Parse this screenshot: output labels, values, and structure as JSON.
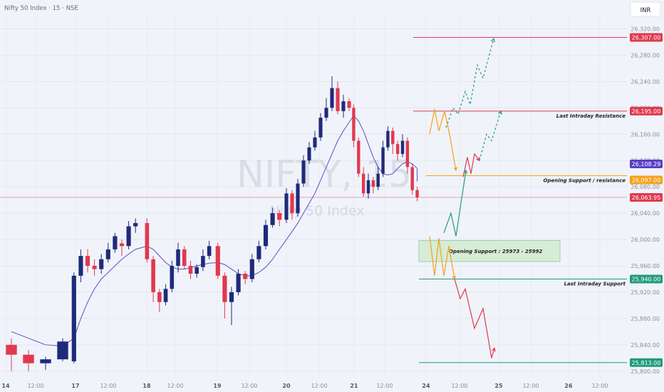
{
  "header": {
    "title": "Nifty 50 Index · 15 · NSE",
    "currency": "INR"
  },
  "watermark": {
    "symbol": "NIFTY, 15",
    "name": "Nifty 50 Index"
  },
  "colors": {
    "background": "#f0f3fa",
    "up_candle": "#1f2a7a",
    "down_candle": "#e0394e",
    "ma_line": "#5b4fc2",
    "resistance": "#e0394e",
    "support": "#1e9c7a",
    "opening_level": "#f4a11a",
    "current_price": "#e0394e",
    "vwap_marker": "#5b3fc4",
    "zone_fill": "#d6ecd6"
  },
  "chart_data": {
    "type": "candlestick",
    "ylim": [
      25790,
      26340
    ],
    "y_ticks": [
      {
        "value": 25800,
        "label": "25,800.00"
      },
      {
        "value": 25840,
        "label": "25,840.00"
      },
      {
        "value": 25880,
        "label": "25,880.00"
      },
      {
        "value": 25920,
        "label": "25,920.00"
      },
      {
        "value": 25960,
        "label": "25,960.00"
      },
      {
        "value": 26000,
        "label": "26,000.00"
      },
      {
        "value": 26040,
        "label": "26,040.00"
      },
      {
        "value": 26080,
        "label": "26,080.00"
      },
      {
        "value": 26120,
        "label": "26,120.00"
      },
      {
        "value": 26160,
        "label": "26,160.00"
      },
      {
        "value": 26200,
        "label": "26,200.00"
      },
      {
        "value": 26240,
        "label": "26,240.00"
      },
      {
        "value": 26280,
        "label": "26,280.00"
      },
      {
        "value": 26320,
        "label": "26,320.00"
      }
    ],
    "x_ticks": [
      "14",
      "12:00",
      "17",
      "12:00",
      "18",
      "12:00",
      "19",
      "12:00",
      "20",
      "12:00",
      "21",
      "12:00",
      "24",
      "12:00",
      "25",
      "12:00",
      "26",
      "12:00"
    ],
    "price_badges": [
      {
        "label": "26,307.00",
        "value": 26307,
        "color": "#e0394e"
      },
      {
        "label": "26,195.00",
        "value": 26195,
        "color": "#e0394e"
      },
      {
        "label": "26,108.29",
        "value": 26108.29,
        "color": "#5b3fc4"
      },
      {
        "label": "26,097.00",
        "value": 26097,
        "color": "#f4a11a"
      },
      {
        "label": "26,063.95",
        "value": 26063.95,
        "color": "#e0394e"
      },
      {
        "label": "25,940.00",
        "value": 25940,
        "color": "#1e9c7a"
      },
      {
        "label": "25,813.00",
        "value": 25813,
        "color": "#1e9c7a"
      }
    ],
    "levels": [
      {
        "value": 26307,
        "color": "#e0394e",
        "text": ""
      },
      {
        "value": 26195,
        "color": "#e0394e",
        "text": "Last Intraday Resistance"
      },
      {
        "value": 26097,
        "color": "#f4a11a",
        "text": "Opening Support / resistance"
      },
      {
        "value": 25940,
        "color": "#1e9c7a",
        "text": "Last Intraday Support"
      },
      {
        "value": 25813,
        "color": "#1e9c7a",
        "text": ""
      }
    ],
    "current_price": 26063.95,
    "zone": {
      "low": 25973,
      "high": 25992,
      "text": "Opening Support :  25973 - 25992"
    },
    "candles": {
      "14": [
        [
          25840,
          25825,
          25850,
          25800
        ],
        [
          25825,
          25812,
          25832,
          25800
        ],
        [
          25812,
          25818,
          25822,
          25802
        ],
        [
          25818,
          25845,
          25850,
          25815
        ]
      ],
      "17": [
        [
          25815,
          25945,
          25950,
          25812
        ],
        [
          25945,
          25975,
          25985,
          25935
        ],
        [
          25975,
          25960,
          25985,
          25950
        ],
        [
          25960,
          25955,
          25970,
          25945
        ],
        [
          25955,
          25970,
          25978,
          25948
        ],
        [
          25970,
          25985,
          25995,
          25965
        ],
        [
          25985,
          26005,
          26010,
          25980
        ],
        [
          25994,
          25990,
          26000,
          25975
        ],
        [
          25990,
          26020,
          26028,
          25985
        ],
        [
          26020,
          26025,
          26032,
          26010
        ]
      ],
      "18": [
        [
          26025,
          25970,
          26032,
          25965
        ],
        [
          25970,
          25920,
          25975,
          25905
        ],
        [
          25920,
          25905,
          25925,
          25890
        ],
        [
          25905,
          25925,
          25932,
          25900
        ],
        [
          25925,
          25960,
          25968,
          25920
        ],
        [
          25960,
          25985,
          25995,
          25950
        ],
        [
          25985,
          25960,
          25990,
          25955
        ],
        [
          25960,
          25948,
          25968,
          25940
        ],
        [
          25948,
          25958,
          25962,
          25942
        ],
        [
          25958,
          25975,
          25985,
          25952
        ],
        [
          25975,
          25990,
          25998,
          25970
        ]
      ],
      "19": [
        [
          25990,
          25945,
          25995,
          25940
        ],
        [
          25945,
          25905,
          25950,
          25880
        ],
        [
          25905,
          25920,
          25928,
          25870
        ],
        [
          25920,
          25948,
          25955,
          25915
        ],
        [
          25948,
          25940,
          25952,
          25932
        ],
        [
          25940,
          25970,
          25978,
          25935
        ],
        [
          25970,
          25990,
          25998,
          25965
        ],
        [
          25990,
          26022,
          26030,
          25985
        ],
        [
          26022,
          26040,
          26048,
          26018
        ],
        [
          26040,
          26030,
          26045,
          26020
        ]
      ],
      "20": [
        [
          26030,
          26070,
          26078,
          26025
        ],
        [
          26070,
          26040,
          26075,
          26030
        ],
        [
          26040,
          26085,
          26092,
          26035
        ],
        [
          26085,
          26120,
          26128,
          26080
        ],
        [
          26120,
          26140,
          26148,
          26115
        ],
        [
          26140,
          26155,
          26165,
          26135
        ],
        [
          26155,
          26185,
          26192,
          26150
        ],
        [
          26185,
          26200,
          26215,
          26180
        ],
        [
          26200,
          26230,
          26248,
          26195
        ],
        [
          26230,
          26195,
          26240,
          26190
        ],
        [
          26195,
          26210,
          26220,
          26185
        ],
        [
          26210,
          26200,
          26215,
          26195
        ]
      ],
      "21": [
        [
          26200,
          26150,
          26205,
          26140
        ],
        [
          26150,
          26100,
          26155,
          26095
        ],
        [
          26100,
          26070,
          26110,
          26065
        ],
        [
          26070,
          26090,
          26100,
          26062
        ],
        [
          26090,
          26080,
          26095,
          26070
        ],
        [
          26080,
          26100,
          26110,
          26075
        ],
        [
          26100,
          26140,
          26150,
          26095
        ],
        [
          26140,
          26165,
          26172,
          26135
        ],
        [
          26165,
          26145,
          26170,
          26130
        ],
        [
          26145,
          26130,
          26150,
          26120
        ],
        [
          26130,
          26150,
          26160,
          26125
        ],
        [
          26150,
          26110,
          26155,
          26100
        ],
        [
          26110,
          26075,
          26115,
          26068
        ],
        [
          26075,
          26064,
          26080,
          26058
        ]
      ]
    },
    "scenarios": [
      {
        "color": "#1e9c7a",
        "dashed": true,
        "points": [
          [
            "24",
            0.28,
            26170
          ],
          [
            "24",
            0.38,
            26200
          ],
          [
            "24",
            0.45,
            26190
          ],
          [
            "24",
            0.55,
            26225
          ],
          [
            "24",
            0.62,
            26205
          ],
          [
            "24",
            0.72,
            26265
          ],
          [
            "24",
            0.8,
            26245
          ],
          [
            "24",
            0.95,
            26305
          ]
        ]
      },
      {
        "color": "#f4a11a",
        "dashed": false,
        "points": [
          [
            "24",
            0.05,
            26160
          ],
          [
            "24",
            0.12,
            26198
          ],
          [
            "24",
            0.18,
            26165
          ],
          [
            "24",
            0.26,
            26195
          ],
          [
            "24",
            0.33,
            26160
          ],
          [
            "24",
            0.42,
            26105
          ]
        ]
      },
      {
        "color": "#e0394e",
        "dashed": false,
        "points": [
          [
            "24",
            0.52,
            26095
          ],
          [
            "24",
            0.58,
            26125
          ],
          [
            "24",
            0.63,
            26100
          ],
          [
            "24",
            0.68,
            26130
          ],
          [
            "24",
            0.75,
            26120
          ]
        ]
      },
      {
        "color": "#1e9c7a",
        "dashed": true,
        "points": [
          [
            "24",
            0.75,
            26120
          ],
          [
            "24",
            0.85,
            26160
          ],
          [
            "24",
            0.92,
            26150
          ],
          [
            "24",
            1.05,
            26195
          ]
        ]
      },
      {
        "color": "#1e9c7a",
        "dashed": false,
        "points": [
          [
            "24",
            0.25,
            26010
          ],
          [
            "24",
            0.35,
            26040
          ],
          [
            "24",
            0.42,
            26005
          ],
          [
            "24",
            0.56,
            26105
          ]
        ]
      },
      {
        "color": "#f4a11a",
        "dashed": false,
        "points": [
          [
            "24",
            0.05,
            26005
          ],
          [
            "24",
            0.12,
            25945
          ],
          [
            "24",
            0.18,
            26002
          ],
          [
            "24",
            0.25,
            25945
          ],
          [
            "24",
            0.32,
            25990
          ],
          [
            "24",
            0.4,
            25940
          ]
        ]
      },
      {
        "color": "#e0394e",
        "dashed": false,
        "points": [
          [
            "24",
            0.4,
            25940
          ],
          [
            "24",
            0.48,
            25910
          ],
          [
            "24",
            0.55,
            25925
          ],
          [
            "24",
            0.68,
            25865
          ],
          [
            "24",
            0.8,
            25895
          ],
          [
            "24",
            0.92,
            25820
          ],
          [
            "24",
            0.96,
            25835
          ]
        ]
      }
    ],
    "ma": [
      25860,
      25850,
      25840,
      25838,
      25850,
      25880,
      25905,
      25925,
      25940,
      25950,
      25960,
      25970,
      25978,
      25985,
      25990,
      25985,
      25975,
      25965,
      25958,
      25955,
      25955,
      25957,
      25960,
      25962,
      25964,
      25965,
      25962,
      25955,
      25948,
      25945,
      25945,
      25950,
      25958,
      25970,
      25985,
      26000,
      26012,
      26025,
      26040,
      26055,
      26070,
      26090,
      26110,
      26130,
      26150,
      26165,
      26178,
      26188,
      26180,
      26165,
      26145,
      26125,
      26110,
      26100,
      26098,
      26100,
      26108,
      26115,
      26118,
      26115,
      26108,
      26098,
      26088
    ]
  }
}
